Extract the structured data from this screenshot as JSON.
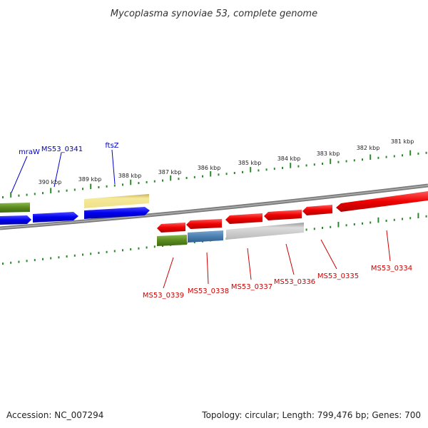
{
  "title": "Mycoplasma synoviae 53, complete genome",
  "footer": {
    "accession": "Accession: NC_007294",
    "summary": "Topology: circular; Length: 799,476 bp; Genes: 700"
  },
  "kbp_labels": [
    "381 kbp",
    "382 kbp",
    "383 kbp",
    "384 kbp",
    "385 kbp",
    "386 kbp",
    "387 kbp",
    "388 kbp",
    "389 kbp",
    "390 kbp"
  ],
  "top_genes": [
    {
      "label": "mraW",
      "color": "blue"
    },
    {
      "label": "MS53_0341",
      "color": "blue"
    },
    {
      "label": "ftsZ",
      "color": "blue"
    }
  ],
  "bottom_genes": [
    {
      "label": "MS53_0339",
      "color": "red"
    },
    {
      "label": "MS53_0338",
      "color": "red"
    },
    {
      "label": "MS53_0337",
      "color": "red"
    },
    {
      "label": "MS53_0336",
      "color": "red"
    },
    {
      "label": "MS53_0335",
      "color": "red"
    },
    {
      "label": "MS53_0334",
      "color": "red"
    }
  ],
  "colors": {
    "forward": "#0000ee",
    "reverse": "#ee0000",
    "green": "#5a8a20",
    "yellow": "#efe08a",
    "steel": "#4a7fb0",
    "grey": "#b8b8b8",
    "tick": "#2a8a2a",
    "backbone": "#888888"
  }
}
